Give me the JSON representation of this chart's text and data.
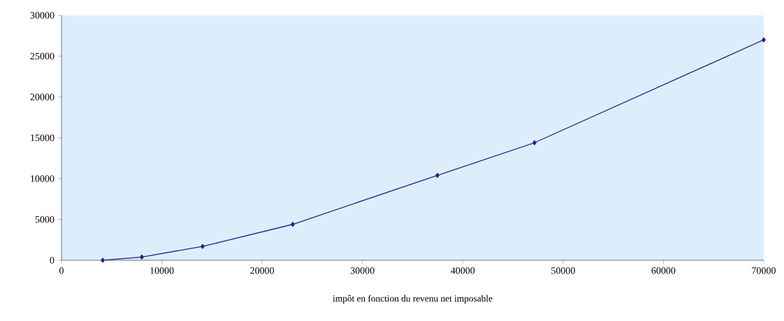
{
  "chart_data": {
    "type": "line",
    "xlabel": "impôt en fonction du revenu net imposable",
    "x": [
      4110,
      8010,
      14070,
      23050,
      37470,
      47150,
      70000
    ],
    "series": [
      {
        "color": "#2e1f8a",
        "values": [
          0,
          400,
          1700,
          4400,
          10400,
          14400,
          27000
        ]
      }
    ],
    "xlim": [
      0,
      70000
    ],
    "xticks": [
      0,
      10000,
      20000,
      30000,
      40000,
      50000,
      60000,
      70000
    ],
    "ylim": [
      0,
      30000
    ],
    "yticks": [
      0,
      5000,
      10000,
      15000,
      20000,
      25000,
      30000
    ],
    "grid": false,
    "marker": "diamond",
    "line_style": "solid"
  }
}
